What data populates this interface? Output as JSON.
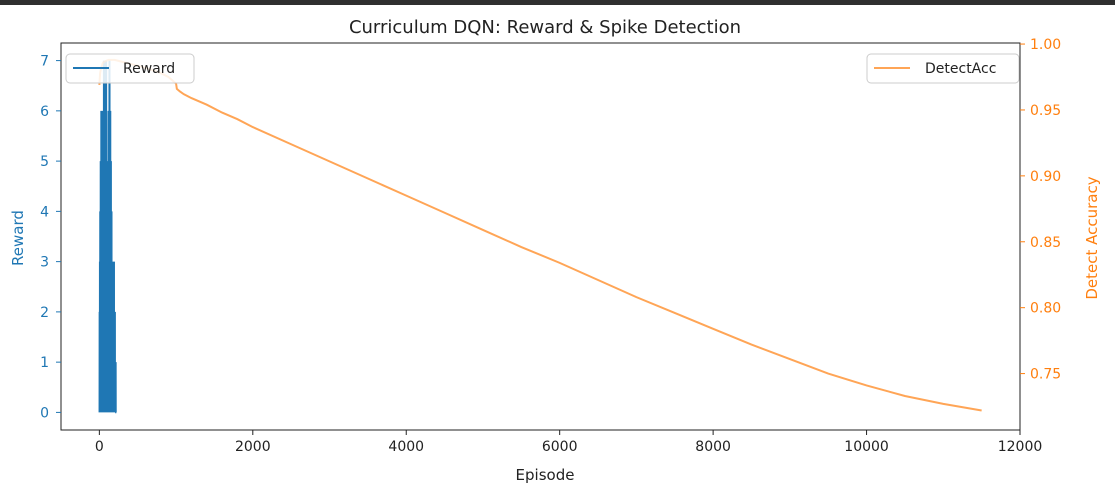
{
  "chart_data": {
    "type": "line",
    "title": "Curriculum DQN: Reward & Spike Detection",
    "xlabel": "Episode",
    "xlim": [
      -500,
      12000
    ],
    "xticks": [
      0,
      2000,
      4000,
      6000,
      8000,
      10000,
      12000
    ],
    "left_axis": {
      "label": "Reward",
      "color": "#1f77b4",
      "ylim": [
        -0.35,
        7.35
      ],
      "ticks": [
        0,
        1,
        2,
        3,
        4,
        5,
        6,
        7
      ]
    },
    "right_axis": {
      "label": "Detect Accuracy",
      "color": "#ff7f0e",
      "ylim": [
        0.7072,
        1.0008
      ],
      "ticks": [
        0.75,
        0.8,
        0.85,
        0.9,
        0.95,
        1.0
      ],
      "tick_labels": [
        "0.75",
        "0.80",
        "0.85",
        "0.90",
        "0.95",
        "1.00"
      ]
    },
    "grid": false,
    "series": [
      {
        "name": "Reward",
        "axis": "left",
        "color": "#1f77b4",
        "x_range": [
          0,
          220
        ],
        "max_envelope": [
          [
            0,
            2
          ],
          [
            10,
            4
          ],
          [
            25,
            6
          ],
          [
            50,
            6
          ],
          [
            60,
            7
          ],
          [
            90,
            7
          ],
          [
            100,
            4
          ],
          [
            115,
            5
          ],
          [
            130,
            7
          ],
          [
            150,
            5
          ],
          [
            170,
            2
          ],
          [
            185,
            3
          ],
          [
            200,
            2
          ],
          [
            220,
            0
          ]
        ],
        "min_value": 0
      },
      {
        "name": "DetectAcc",
        "axis": "right",
        "color": "#ff7f0e",
        "alpha": 0.7,
        "x": [
          0,
          10,
          20,
          35,
          50,
          80,
          120,
          200,
          400,
          600,
          800,
          900,
          1000,
          1010,
          1050,
          1100,
          1200,
          1400,
          1600,
          1800,
          2000,
          2500,
          3000,
          3500,
          4000,
          4500,
          5000,
          5500,
          6000,
          6500,
          7000,
          7500,
          8000,
          8500,
          9000,
          9500,
          10000,
          10500,
          11000,
          11500
        ],
        "y": [
          0.969,
          0.978,
          0.981,
          0.984,
          0.986,
          0.987,
          0.988,
          0.988,
          0.985,
          0.982,
          0.978,
          0.975,
          0.97,
          0.966,
          0.964,
          0.962,
          0.959,
          0.954,
          0.948,
          0.943,
          0.937,
          0.924,
          0.911,
          0.898,
          0.885,
          0.872,
          0.859,
          0.846,
          0.834,
          0.821,
          0.808,
          0.796,
          0.784,
          0.772,
          0.761,
          0.75,
          0.741,
          0.733,
          0.727,
          0.722
        ]
      }
    ],
    "legends": [
      {
        "axis": "left",
        "entries": [
          "Reward"
        ],
        "placement": "upper-left"
      },
      {
        "axis": "right",
        "entries": [
          "DetectAcc"
        ],
        "placement": "upper-right"
      }
    ]
  }
}
